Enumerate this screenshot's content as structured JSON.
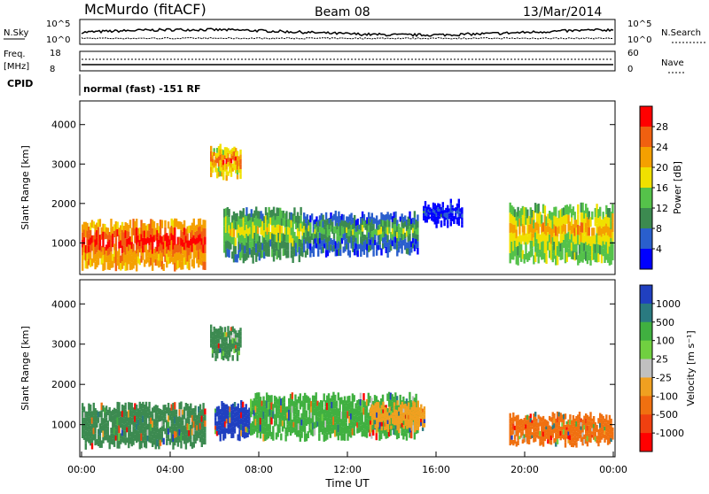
{
  "header": {
    "station": "McMurdo (fitACF)",
    "beam": "Beam 08",
    "date": "13/Mar/2014"
  },
  "aux_panels": {
    "nsky_label": "N.Sky",
    "nsearch_label": "N.Search",
    "noise_ticks_left": [
      "10^5",
      "10^0"
    ],
    "noise_ticks_right": [
      "10^5",
      "10^0"
    ],
    "freq_label": "Freq.",
    "freq_unit": "[MHz]",
    "freq_ticks": [
      "18",
      "8"
    ],
    "nave_label": "Nave",
    "nave_ticks": [
      "60",
      "0"
    ],
    "cpid_label": "CPID",
    "cpid_text": "normal (fast) -151 RF"
  },
  "chart_data": [
    {
      "type": "heatmap",
      "name": "power",
      "ylabel": "Slant Range [km]",
      "yticks": [
        "1000",
        "2000",
        "3000",
        "4000"
      ],
      "ylim": [
        200,
        4600
      ],
      "xlim": [
        0,
        24
      ],
      "colorbar_label": "Power [dB]",
      "colorbar_ticks": [
        "4",
        "8",
        "12",
        "16",
        "20",
        "24",
        "28"
      ],
      "colorbar_colors": [
        "#0000ff",
        "#2a5fcd",
        "#3c8a50",
        "#55c24a",
        "#f0e000",
        "#f4a000",
        "#f06010",
        "#ff0000"
      ],
      "regions": [
        {
          "t0": 0.0,
          "t1": 5.6,
          "r0": 400,
          "r1": 1500,
          "level": 7
        },
        {
          "t0": 5.8,
          "t1": 7.2,
          "r0": 2700,
          "r1": 3400,
          "level": 6
        },
        {
          "t0": 6.4,
          "t1": 10.0,
          "r0": 600,
          "r1": 1800,
          "level": 4
        },
        {
          "t0": 10.0,
          "t1": 15.2,
          "r0": 750,
          "r1": 1700,
          "level": 3
        },
        {
          "t0": 15.4,
          "t1": 17.2,
          "r0": 1500,
          "r1": 2000,
          "level": 1
        },
        {
          "t0": 19.3,
          "t1": 24.0,
          "r0": 550,
          "r1": 1900,
          "level": 5
        }
      ]
    },
    {
      "type": "heatmap",
      "name": "velocity",
      "ylabel": "Slant Range [km]",
      "yticks": [
        "1000",
        "2000",
        "3000",
        "4000"
      ],
      "ylim": [
        200,
        4600
      ],
      "xlim": [
        0,
        24
      ],
      "xticks": [
        "00:00",
        "04:00",
        "08:00",
        "12:00",
        "16:00",
        "20:00",
        "00:00"
      ],
      "xlabel": "Time UT",
      "colorbar_label": "Velocity [m s⁻¹]",
      "colorbar_ticks": [
        "1000",
        "500",
        "100",
        "25",
        "-25",
        "-100",
        "-500",
        "-1000"
      ],
      "colorbar_colors": [
        "#2040c0",
        "#2a7a80",
        "#40b040",
        "#70d040",
        "#c0c0c0",
        "#f0a020",
        "#f07010",
        "#f04010",
        "#ff0000"
      ],
      "regions": [
        {
          "t0": 0.0,
          "t1": 5.6,
          "r0": 500,
          "r1": 1450,
          "color": "#3c8a50"
        },
        {
          "t0": 5.8,
          "t1": 7.2,
          "r0": 2700,
          "r1": 3400,
          "color": "#3c8a50"
        },
        {
          "t0": 6.0,
          "t1": 7.6,
          "r0": 700,
          "r1": 1500,
          "color": "#2040c0"
        },
        {
          "t0": 7.6,
          "t1": 15.2,
          "r0": 700,
          "r1": 1700,
          "color": "#40b040"
        },
        {
          "t0": 13.0,
          "t1": 15.5,
          "r0": 900,
          "r1": 1500,
          "color": "#f0a020"
        },
        {
          "t0": 19.3,
          "t1": 24.0,
          "r0": 550,
          "r1": 1200,
          "color": "#f07010"
        }
      ]
    }
  ]
}
